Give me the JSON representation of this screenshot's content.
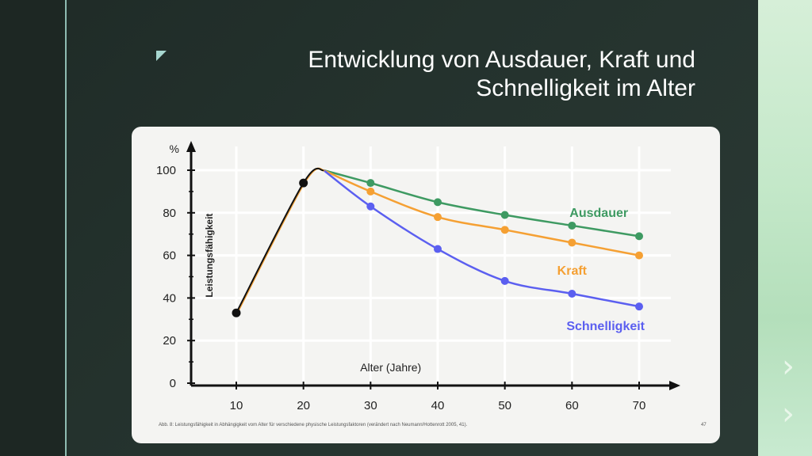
{
  "slide": {
    "title_line1": "Entwicklung von Ausdauer, Kraft und",
    "title_line2": "Schnelligkeit im Alter"
  },
  "chart_data": {
    "type": "line",
    "ylabel": "Leistungsfähigkeit",
    "yunit": "%",
    "xlabel": "Alter (Jahre)",
    "xlim": [
      10,
      70
    ],
    "ylim": [
      0,
      100
    ],
    "xticks": [
      10,
      20,
      30,
      40,
      50,
      60,
      70
    ],
    "yticks": [
      0,
      20,
      40,
      60,
      80,
      100
    ],
    "grid": true,
    "common": {
      "x": [
        10,
        20,
        23
      ],
      "y": [
        33,
        94,
        100
      ],
      "color": "#111111"
    },
    "series": [
      {
        "name": "Ausdauer",
        "color": "#3e9a62",
        "x": [
          23,
          30,
          40,
          50,
          60,
          70
        ],
        "y": [
          100,
          94,
          85,
          79,
          74,
          69
        ]
      },
      {
        "name": "Kraft",
        "color": "#f5a033",
        "x": [
          23,
          30,
          40,
          50,
          60,
          70
        ],
        "y": [
          100,
          90,
          78,
          72,
          66,
          60
        ]
      },
      {
        "name": "Schnelligkeit",
        "color": "#5b5ff0",
        "x": [
          23,
          30,
          40,
          50,
          60,
          70
        ],
        "y": [
          100,
          83,
          63,
          48,
          42,
          36
        ]
      }
    ],
    "caption": "Abb. 8: Leistungsfähigkeit in Abhängigkeit vom Alter für verschiedene physische Leistungsfaktoren (verändert nach Neumann/Hottenrott 2005, 41).",
    "page_number": "47"
  }
}
